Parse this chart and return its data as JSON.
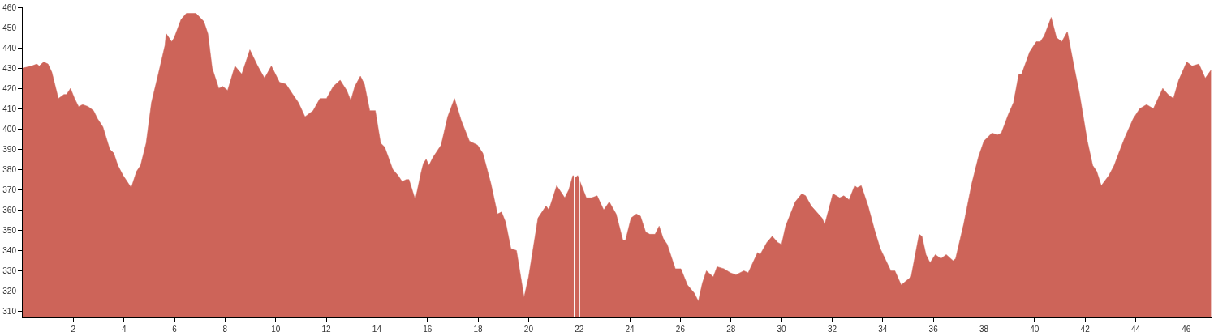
{
  "chart_data": {
    "type": "area",
    "x": [
      0,
      0.35,
      0.56,
      0.65,
      0.83,
      1.0,
      1.15,
      1.25,
      1.41,
      1.63,
      1.73,
      1.89,
      2.05,
      2.21,
      2.37,
      2.59,
      2.8,
      2.96,
      3.17,
      3.44,
      3.6,
      3.76,
      3.97,
      4.29,
      4.5,
      4.66,
      4.88,
      5.09,
      5.36,
      5.62,
      5.67,
      5.89,
      5.99,
      6.26,
      6.47,
      6.85,
      7.16,
      7.32,
      7.49,
      7.75,
      7.91,
      8.1,
      8.39,
      8.66,
      8.98,
      9.29,
      9.56,
      9.83,
      10.15,
      10.41,
      10.68,
      10.9,
      11.16,
      11.48,
      11.75,
      12.01,
      12.28,
      12.55,
      12.81,
      12.97,
      13.13,
      13.35,
      13.51,
      13.72,
      13.94,
      14.15,
      14.31,
      14.63,
      14.84,
      15.0,
      15.16,
      15.27,
      15.52,
      15.74,
      15.84,
      15.95,
      16.06,
      16.22,
      16.54,
      16.8,
      17.07,
      17.34,
      17.66,
      17.98,
      18.19,
      18.51,
      18.77,
      18.93,
      19.09,
      19.3,
      19.52,
      19.82,
      20.0,
      20.37,
      20.69,
      20.8,
      21.11,
      21.43,
      21.59,
      21.75,
      21.86,
      21.94,
      22.28,
      22.49,
      22.71,
      22.97,
      23.19,
      23.46,
      23.73,
      23.83,
      24.05,
      24.26,
      24.42,
      24.63,
      24.79,
      25.0,
      25.16,
      25.32,
      25.48,
      25.8,
      26.02,
      26.28,
      26.55,
      26.71,
      26.87,
      27.03,
      27.3,
      27.45,
      27.72,
      27.98,
      28.2,
      28.51,
      28.68,
      29.05,
      29.15,
      29.42,
      29.63,
      29.85,
      30.0,
      30.16,
      30.54,
      30.8,
      30.95,
      31.17,
      31.6,
      31.71,
      32.03,
      32.3,
      32.46,
      32.67,
      32.89,
      32.99,
      33.15,
      33.42,
      33.68,
      33.9,
      34.32,
      34.48,
      34.73,
      35.02,
      35.12,
      35.44,
      35.55,
      35.71,
      35.87,
      36.08,
      36.3,
      36.51,
      36.78,
      36.88,
      37.2,
      37.52,
      37.78,
      38.0,
      38.32,
      38.53,
      38.69,
      38.96,
      39.17,
      39.38,
      39.49,
      39.81,
      40.07,
      40.23,
      40.39,
      40.66,
      40.87,
      41.08,
      41.3,
      41.56,
      41.77,
      41.93,
      42.09,
      42.3,
      42.46,
      42.64,
      42.94,
      43.15,
      43.36,
      43.58,
      43.9,
      44.16,
      44.43,
      44.7,
      45.07,
      45.28,
      45.49,
      45.7,
      46.02,
      46.23,
      46.5,
      46.75,
      46.98
    ],
    "values": [
      430,
      431,
      432,
      431,
      433,
      432,
      428,
      423,
      415,
      417,
      417,
      420,
      415,
      411,
      412,
      411,
      409,
      405,
      401,
      390,
      388,
      382,
      377,
      371,
      379,
      382,
      393,
      413,
      427,
      441,
      447,
      443,
      445,
      454,
      457,
      457,
      453,
      447,
      430,
      420,
      421,
      419,
      431,
      427,
      439,
      431,
      425,
      431,
      423,
      422,
      417,
      413,
      406,
      409,
      415,
      415,
      421,
      424,
      419,
      414,
      421,
      426,
      422,
      409,
      409,
      393,
      391,
      380,
      377,
      374,
      375,
      375,
      365,
      378,
      383,
      385,
      382,
      386,
      392,
      406,
      415,
      404,
      394,
      392,
      388,
      373,
      358,
      359,
      354,
      341,
      340,
      317,
      327,
      356,
      362,
      360,
      372,
      366,
      370,
      377,
      376,
      377,
      366,
      366,
      367,
      360,
      364,
      358,
      345,
      345,
      356,
      358,
      357,
      349,
      348,
      348,
      352,
      346,
      343,
      331,
      331,
      323,
      319,
      315,
      324,
      330,
      327,
      332,
      331,
      329,
      328,
      330,
      329,
      339,
      338,
      344,
      347,
      344,
      343,
      352,
      364,
      368,
      367,
      362,
      356,
      353,
      368,
      366,
      367,
      365,
      372,
      371,
      372,
      362,
      350,
      341,
      330,
      330,
      323,
      326,
      327,
      348,
      347,
      338,
      334,
      338,
      336,
      338,
      335,
      336,
      353,
      373,
      386,
      394,
      398,
      397,
      398,
      407,
      413,
      427,
      427,
      438,
      443,
      443,
      446,
      455,
      445,
      443,
      448,
      431,
      418,
      406,
      394,
      382,
      379,
      372,
      377,
      382,
      389,
      396,
      405,
      410,
      412,
      410,
      420,
      417,
      415,
      424,
      433,
      431,
      432,
      425,
      429
    ],
    "color": "#cd6459",
    "xlim": [
      0,
      47.0
    ],
    "ylim": [
      307,
      460
    ],
    "xticks": [
      2,
      4,
      6,
      8,
      10,
      12,
      14,
      16,
      18,
      20,
      22,
      24,
      26,
      28,
      30,
      32,
      34,
      36,
      38,
      40,
      42,
      44,
      46
    ],
    "yticks": [
      310,
      320,
      330,
      340,
      350,
      360,
      370,
      380,
      390,
      400,
      410,
      420,
      430,
      440,
      450,
      460
    ],
    "ref_lines": [
      {
        "axis": "x",
        "value": 21.81,
        "color": "#ffffff"
      },
      {
        "axis": "x",
        "value": 22.01,
        "color": "#ffffff"
      }
    ],
    "legend": false
  }
}
